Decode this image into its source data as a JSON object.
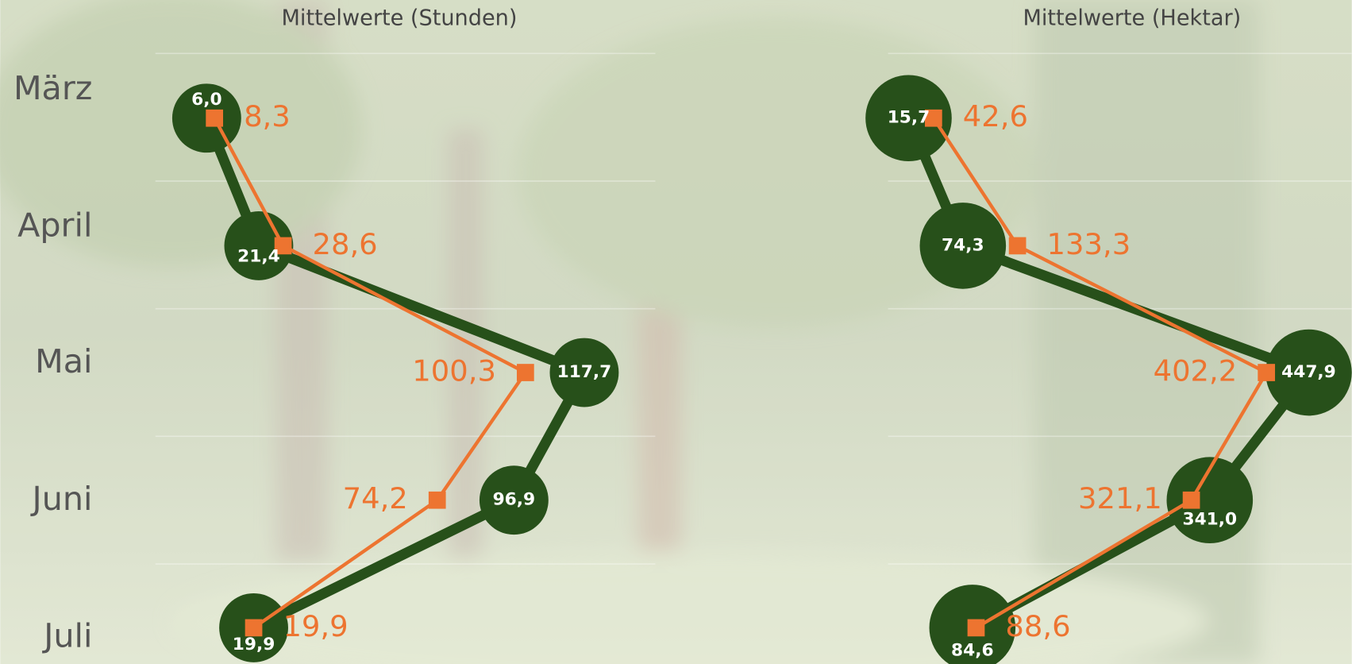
{
  "chart_data": [
    {
      "type": "line",
      "title": "Mittelwerte (Stunden)",
      "categories": [
        "März",
        "April",
        "Mai",
        "Juni",
        "Juli"
      ],
      "xlim": [
        0,
        140
      ],
      "series": [
        {
          "color": "#27501a",
          "values": [
            6.0,
            21.4,
            117.7,
            96.9,
            19.9
          ],
          "value_labels": [
            "6,0",
            "21,4",
            "117,7",
            "96,9",
            "19,9"
          ]
        },
        {
          "color": "#ed7430",
          "values": [
            8.3,
            28.6,
            100.3,
            74.2,
            19.9
          ],
          "value_labels": [
            "8,3",
            "28,6",
            "100,3",
            "74,2",
            "19,9"
          ]
        }
      ]
    },
    {
      "type": "line",
      "title": "Mittelwerte (Hektar)",
      "xlim": [
        0,
        500
      ],
      "series": [
        {
          "color": "#27501a",
          "values": [
            15.7,
            74.3,
            447.9,
            341.0,
            84.6
          ],
          "value_labels": [
            "15,7",
            "74,3",
            "447,9",
            "341,0",
            "84,6"
          ]
        },
        {
          "color": "#ed7430",
          "values": [
            42.6,
            133.3,
            402.2,
            321.1,
            88.6
          ],
          "value_labels": [
            "42,6",
            "133,3",
            "402,2",
            "321,1",
            "88,6"
          ]
        }
      ]
    }
  ]
}
